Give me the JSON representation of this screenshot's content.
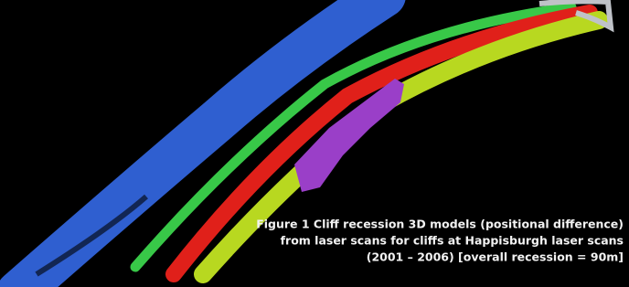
{
  "figure": {
    "caption": {
      "lines": [
        "Figure 1 Cliff recession 3D models (positional difference)",
        "from laser scans for cliffs at Happisburgh laser scans",
        "(2001 – 2006) [overall recession = 90m]"
      ]
    }
  }
}
